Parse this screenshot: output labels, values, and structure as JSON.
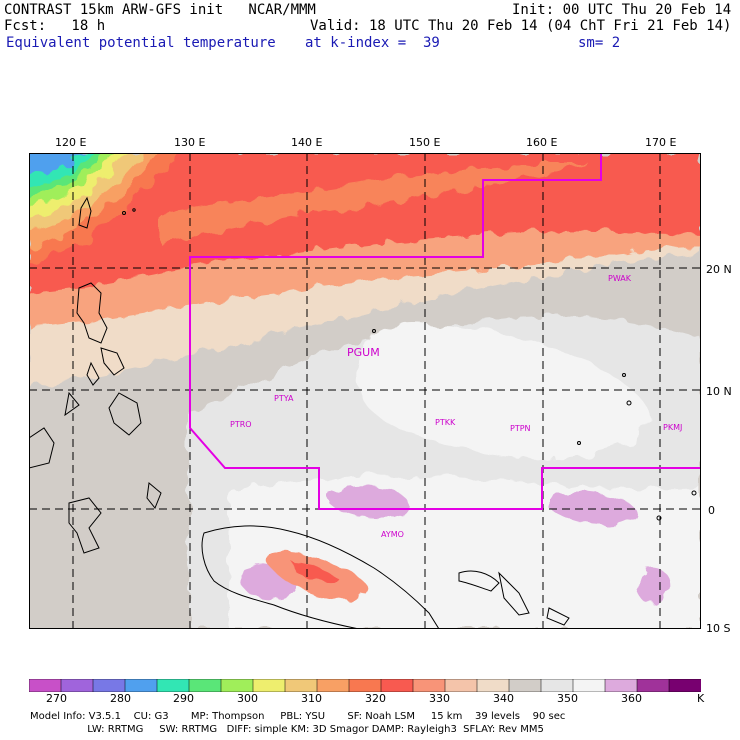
{
  "header": {
    "line1_left": "CONTRAST 15km ARW-GFS init   NCAR/MMM",
    "line1_right": "Init: 00 UTC Thu 20 Feb 14",
    "line2_left": "Fcst:   18 h",
    "line2_right": "Valid: 18 UTC Thu 20 Feb 14 (04 ChT Fri 21 Feb 14)",
    "line3_field": "Equivalent potential temperature",
    "line3_level": "at k-index =  39",
    "line3_smooth": "sm= 2"
  },
  "axes": {
    "lon_labels": [
      "120 E",
      "130 E",
      "140 E",
      "150 E",
      "160 E",
      "170 E"
    ],
    "lat_labels": [
      "20 N",
      "10 N",
      "0",
      "10 S"
    ]
  },
  "stations": [
    "PGUM",
    "PTYA",
    "PTRO",
    "PTKK",
    "PTPN",
    "PKMJ",
    "PWAK",
    "AYMO"
  ],
  "colorbar": {
    "labels": [
      "270",
      "280",
      "290",
      "300",
      "310",
      "320",
      "330",
      "340",
      "350",
      "360"
    ],
    "unit": "K",
    "colors": [
      "#c850c8",
      "#a064dc",
      "#7878e6",
      "#50a0ee",
      "#32e6b4",
      "#5ae678",
      "#a0ee5a",
      "#eeee6e",
      "#f0c878",
      "#f8a064",
      "#f87850",
      "#f85a50",
      "#f89478",
      "#f4c4aa",
      "#f0dcc8",
      "#d2cdc8",
      "#e6e6e6",
      "#f4f4f4",
      "#ddaadd",
      "#a0329a",
      "#780070"
    ]
  },
  "footer": {
    "line1": "Model Info: V3.5.1    CU: G3       MP: Thompson     PBL: YSU       SF: Noah LSM     15 km    39 levels    90 sec",
    "line2": "                  LW: RRTMG     SW: RRTMG   DIFF: simple KM: 3D Smagor DAMP: Rayleigh3  SFLAY: Rev MM5"
  },
  "colors": {
    "boundary": "#e400e4",
    "station_text": "#cc00cc",
    "grid": "#000000"
  }
}
